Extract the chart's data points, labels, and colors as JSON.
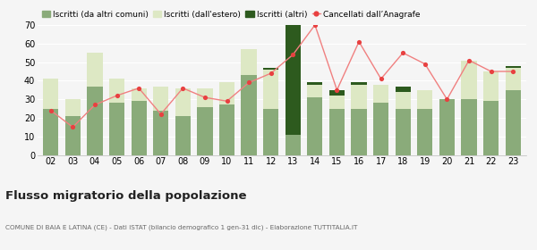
{
  "years": [
    "02",
    "03",
    "04",
    "05",
    "06",
    "07",
    "08",
    "09",
    "10",
    "11",
    "12",
    "13",
    "14",
    "15",
    "16",
    "17",
    "18",
    "19",
    "20",
    "21",
    "22",
    "23"
  ],
  "iscritti_comuni": [
    25,
    21,
    37,
    28,
    29,
    24,
    21,
    26,
    27,
    43,
    25,
    11,
    31,
    25,
    25,
    28,
    25,
    25,
    30,
    30,
    29,
    35
  ],
  "iscritti_estero": [
    16,
    9,
    18,
    13,
    7,
    13,
    15,
    10,
    12,
    14,
    21,
    0,
    7,
    7,
    13,
    10,
    9,
    10,
    0,
    21,
    16,
    12
  ],
  "iscritti_altri": [
    0,
    0,
    0,
    0,
    0,
    0,
    0,
    0,
    0,
    0,
    1,
    59,
    1,
    3,
    1,
    0,
    3,
    0,
    0,
    0,
    0,
    1
  ],
  "cancellati": [
    24,
    15,
    27,
    32,
    36,
    22,
    36,
    31,
    29,
    39,
    44,
    54,
    70,
    35,
    61,
    41,
    55,
    49,
    30,
    51,
    45,
    45
  ],
  "color_comuni": "#8aab7a",
  "color_estero": "#dde8c4",
  "color_altri": "#2d5a1e",
  "color_cancellati": "#e84040",
  "color_cancellati_line": "#f08080",
  "ylim": [
    0,
    70
  ],
  "yticks": [
    0,
    10,
    20,
    30,
    40,
    50,
    60,
    70
  ],
  "title": "Flusso migratorio della popolazione",
  "subtitle": "COMUNE DI BAIA E LATINA (CE) - Dati ISTAT (bilancio demografico 1 gen-31 dic) - Elaborazione TUTTITALIA.IT",
  "legend_labels": [
    "Iscritti (da altri comuni)",
    "Iscritti (dall'estero)",
    "Iscritti (altri)",
    "Cancellati dall’Anagrafe"
  ],
  "bg_color": "#f5f5f5"
}
